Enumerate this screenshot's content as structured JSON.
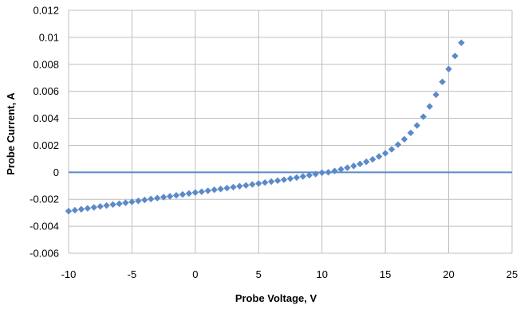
{
  "chart_data": {
    "type": "scatter",
    "title": "",
    "xlabel": "Probe Voltage, V",
    "ylabel": "Probe Current, A",
    "xlim": [
      -10,
      25
    ],
    "ylim": [
      -0.006,
      0.012
    ],
    "x_ticks": [
      -10,
      -5,
      0,
      5,
      10,
      15,
      20,
      25
    ],
    "x_tick_labels": [
      "-10",
      "-5",
      "0",
      "5",
      "10",
      "15",
      "20",
      "25"
    ],
    "y_ticks": [
      -0.006,
      -0.004,
      -0.002,
      0,
      0.002,
      0.004,
      0.006,
      0.008,
      0.01,
      0.012
    ],
    "y_tick_labels": [
      "-0.006",
      "-0.004",
      "-0.002",
      "0",
      "0.002",
      "0.004",
      "0.006",
      "0.008",
      "0.01",
      "0.012"
    ],
    "grid": true,
    "legend": "none",
    "zero_line": true,
    "marker": "diamond",
    "colors": {
      "marker": "#5B8AC8",
      "zero_line": "#5B8AC8",
      "grid": "#BFBFBF",
      "axis": "#808080"
    },
    "series": [
      {
        "x": [
          -10.0,
          -9.5,
          -9.0,
          -8.5,
          -8.0,
          -7.5,
          -7.0,
          -6.5,
          -6.0,
          -5.5,
          -5.0,
          -4.5,
          -4.0,
          -3.5,
          -3.0,
          -2.5,
          -2.0,
          -1.5,
          -1.0,
          -0.5,
          0.0,
          0.5,
          1.0,
          1.5,
          2.0,
          2.5,
          3.0,
          3.5,
          4.0,
          4.5,
          5.0,
          5.5,
          6.0,
          6.5,
          7.0,
          7.5,
          8.0,
          8.5,
          9.0,
          9.5,
          10.0,
          10.5,
          11.0,
          11.5,
          12.0,
          12.5,
          13.0,
          13.5,
          14.0,
          14.5,
          15.0,
          15.5,
          16.0,
          16.5,
          17.0,
          17.5,
          18.0,
          18.5,
          19.0,
          19.5,
          20.0,
          20.5,
          21.0
        ],
        "y": [
          -0.00288,
          -0.00281,
          -0.00274,
          -0.00267,
          -0.0026,
          -0.00253,
          -0.00246,
          -0.00239,
          -0.00233,
          -0.00226,
          -0.00219,
          -0.00212,
          -0.00205,
          -0.00198,
          -0.00191,
          -0.00184,
          -0.00178,
          -0.00171,
          -0.00164,
          -0.00157,
          -0.0015,
          -0.00144,
          -0.00137,
          -0.0013,
          -0.00124,
          -0.00117,
          -0.0011,
          -0.00103,
          -0.00097,
          -0.0009,
          -0.00083,
          -0.00076,
          -0.00069,
          -0.00062,
          -0.00055,
          -0.00047,
          -0.00039,
          -0.00031,
          -0.00022,
          -0.00013,
          -3e-05,
          0.0,
          0.0001,
          0.00022,
          0.00034,
          0.00047,
          0.00062,
          0.00078,
          0.00096,
          0.00117,
          0.00141,
          0.0017,
          0.00205,
          0.00245,
          0.00292,
          0.00347,
          0.00412,
          0.00488,
          0.00575,
          0.0067,
          0.00765,
          0.00862,
          0.0096
        ]
      }
    ]
  }
}
